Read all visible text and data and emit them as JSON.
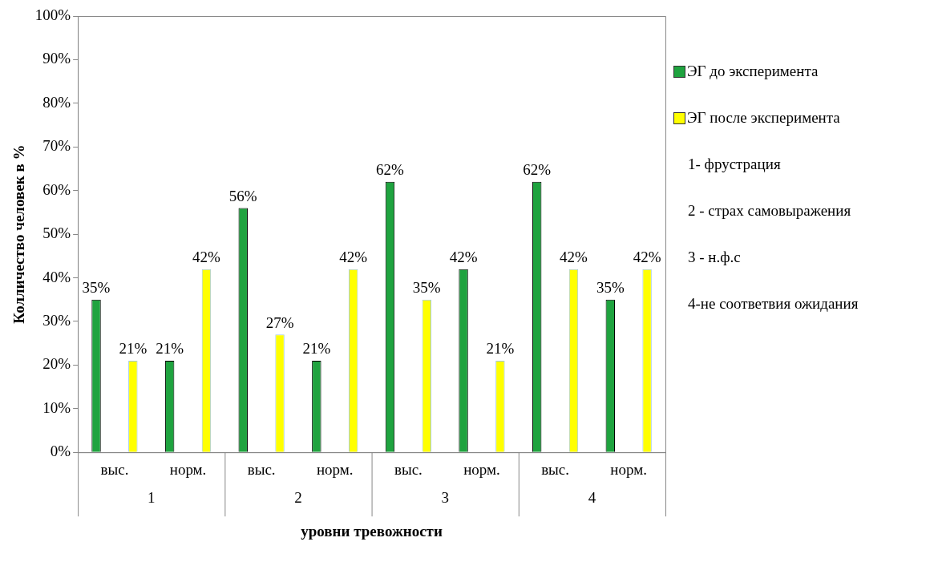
{
  "chart_data": {
    "type": "bar",
    "xlabel": "уровни тревожности",
    "ylabel": "Колличество человек в %",
    "categories": [
      "выс.",
      "норм.",
      "выс.",
      "норм.",
      "выс.",
      "норм.",
      "выс.",
      "норм."
    ],
    "series": [
      {
        "name": "ЭГ до эксперимента",
        "color": "#1fa33f",
        "values": [
          35,
          21,
          56,
          21,
          62,
          42,
          62,
          35
        ],
        "value_labels": [
          "35%",
          "21%",
          "56%",
          "21%",
          "62%",
          "42%",
          "62%",
          "35%"
        ]
      },
      {
        "name": "ЭГ после эксперимента",
        "color": "#ffff00",
        "values": [
          21,
          42,
          27,
          42,
          35,
          21,
          42,
          42
        ],
        "value_labels": [
          "21%",
          "42%",
          "27%",
          "42%",
          "35%",
          "21%",
          "42%",
          "42%"
        ]
      }
    ],
    "ylim": [
      0,
      100
    ],
    "yticks": [
      {
        "value": 0,
        "label": "0%"
      },
      {
        "value": 10,
        "label": "10%"
      },
      {
        "value": 20,
        "label": "20%"
      },
      {
        "value": 30,
        "label": "30%"
      },
      {
        "value": 40,
        "label": "40%"
      },
      {
        "value": 50,
        "label": "50%"
      },
      {
        "value": 60,
        "label": "60%"
      },
      {
        "value": 70,
        "label": "70%"
      },
      {
        "value": 80,
        "label": "80%"
      },
      {
        "value": 90,
        "label": "90%"
      },
      {
        "value": 100,
        "label": "100%"
      }
    ],
    "annotations": [
      "1",
      "2",
      "3",
      "4",
      "1- фрустрация",
      "2 - страх самовыражения",
      "3 - н.ф.с",
      "4-не соответвия ожидания"
    ],
    "legend": "right",
    "grid": false
  }
}
